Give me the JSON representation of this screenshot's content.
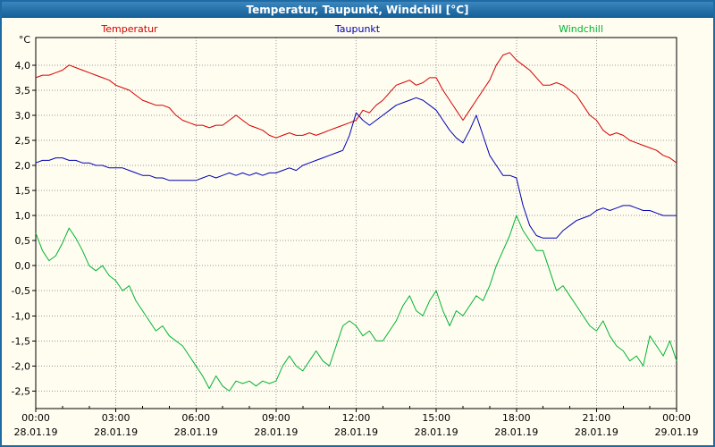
{
  "window": {
    "title": "Temperatur, Taupunkt, Windchill [°C]"
  },
  "legend": [
    {
      "label": "Temperatur",
      "color": "#d40000"
    },
    {
      "label": "Taupunkt",
      "color": "#0000b4"
    },
    {
      "label": "Windchill",
      "color": "#00b432"
    }
  ],
  "chart_data": {
    "type": "line",
    "title": "Temperatur, Taupunkt, Windchill [°C]",
    "ylabel": "°C",
    "grid": true,
    "legend_position": "top",
    "xlim": [
      0,
      24
    ],
    "ylim": [
      -2.85,
      4.55
    ],
    "x_start": 0,
    "x_step": 0.25,
    "y_ticks": [
      {
        "value": 4.0,
        "label": "4,0"
      },
      {
        "value": 3.5,
        "label": "3,5"
      },
      {
        "value": 3.0,
        "label": "3,0"
      },
      {
        "value": 2.5,
        "label": "2,5"
      },
      {
        "value": 2.0,
        "label": "2,0"
      },
      {
        "value": 1.5,
        "label": "1,5"
      },
      {
        "value": 1.0,
        "label": "1,0"
      },
      {
        "value": 0.5,
        "label": "0,5"
      },
      {
        "value": 0.0,
        "label": "0,0"
      },
      {
        "value": -0.5,
        "label": "-0,5"
      },
      {
        "value": -1.0,
        "label": "-1,0"
      },
      {
        "value": -1.5,
        "label": "-1,5"
      },
      {
        "value": -2.0,
        "label": "-2,0"
      },
      {
        "value": -2.5,
        "label": "-2,5"
      }
    ],
    "x_ticks": [
      {
        "hour": 0,
        "time": "00:00",
        "date": "28.01.19"
      },
      {
        "hour": 3,
        "time": "03:00",
        "date": "28.01.19"
      },
      {
        "hour": 6,
        "time": "06:00",
        "date": "28.01.19"
      },
      {
        "hour": 9,
        "time": "09:00",
        "date": "28.01.19"
      },
      {
        "hour": 12,
        "time": "12:00",
        "date": "28.01.19"
      },
      {
        "hour": 15,
        "time": "15:00",
        "date": "28.01.19"
      },
      {
        "hour": 18,
        "time": "18:00",
        "date": "28.01.19"
      },
      {
        "hour": 21,
        "time": "21:00",
        "date": "28.01.19"
      },
      {
        "hour": 24,
        "time": "00:00",
        "date": "29.01.19"
      }
    ],
    "series": [
      {
        "name": "Temperatur",
        "color": "#d40000",
        "values": [
          3.75,
          3.8,
          3.8,
          3.85,
          3.9,
          4.0,
          3.95,
          3.9,
          3.85,
          3.8,
          3.75,
          3.7,
          3.6,
          3.55,
          3.5,
          3.4,
          3.3,
          3.25,
          3.2,
          3.2,
          3.15,
          3.0,
          2.9,
          2.85,
          2.8,
          2.8,
          2.75,
          2.8,
          2.8,
          2.9,
          3.0,
          2.9,
          2.8,
          2.75,
          2.7,
          2.6,
          2.55,
          2.6,
          2.65,
          2.6,
          2.6,
          2.65,
          2.6,
          2.65,
          2.7,
          2.75,
          2.8,
          2.85,
          2.9,
          3.1,
          3.05,
          3.2,
          3.3,
          3.45,
          3.6,
          3.65,
          3.7,
          3.6,
          3.65,
          3.75,
          3.75,
          3.5,
          3.3,
          3.1,
          2.9,
          3.1,
          3.3,
          3.5,
          3.7,
          4.0,
          4.2,
          4.25,
          4.1,
          4.0,
          3.9,
          3.75,
          3.6,
          3.6,
          3.65,
          3.6,
          3.5,
          3.4,
          3.2,
          3.0,
          2.9,
          2.7,
          2.6,
          2.65,
          2.6,
          2.5,
          2.45,
          2.4,
          2.35,
          2.3,
          2.2,
          2.15,
          2.05
        ]
      },
      {
        "name": "Taupunkt",
        "color": "#0000b4",
        "values": [
          2.05,
          2.1,
          2.1,
          2.15,
          2.15,
          2.1,
          2.1,
          2.05,
          2.05,
          2.0,
          2.0,
          1.95,
          1.95,
          1.95,
          1.9,
          1.85,
          1.8,
          1.8,
          1.75,
          1.75,
          1.7,
          1.7,
          1.7,
          1.7,
          1.7,
          1.75,
          1.8,
          1.75,
          1.8,
          1.85,
          1.8,
          1.85,
          1.8,
          1.85,
          1.8,
          1.85,
          1.85,
          1.9,
          1.95,
          1.9,
          2.0,
          2.05,
          2.1,
          2.15,
          2.2,
          2.25,
          2.3,
          2.6,
          3.05,
          2.9,
          2.8,
          2.9,
          3.0,
          3.1,
          3.2,
          3.25,
          3.3,
          3.35,
          3.3,
          3.2,
          3.1,
          2.9,
          2.7,
          2.55,
          2.45,
          2.7,
          3.0,
          2.6,
          2.2,
          2.0,
          1.8,
          1.8,
          1.75,
          1.2,
          0.8,
          0.6,
          0.55,
          0.55,
          0.55,
          0.7,
          0.8,
          0.9,
          0.95,
          1.0,
          1.1,
          1.15,
          1.1,
          1.15,
          1.2,
          1.2,
          1.15,
          1.1,
          1.1,
          1.05,
          1.0,
          1.0,
          1.0
        ]
      },
      {
        "name": "Windchill",
        "color": "#00b432",
        "values": [
          0.65,
          0.3,
          0.1,
          0.2,
          0.45,
          0.75,
          0.55,
          0.3,
          0.0,
          -0.1,
          0.0,
          -0.2,
          -0.3,
          -0.5,
          -0.4,
          -0.7,
          -0.9,
          -1.1,
          -1.3,
          -1.2,
          -1.4,
          -1.5,
          -1.6,
          -1.8,
          -2.0,
          -2.2,
          -2.45,
          -2.2,
          -2.4,
          -2.5,
          -2.3,
          -2.35,
          -2.3,
          -2.4,
          -2.3,
          -2.35,
          -2.3,
          -2.0,
          -1.8,
          -2.0,
          -2.1,
          -1.9,
          -1.7,
          -1.9,
          -2.0,
          -1.6,
          -1.2,
          -1.1,
          -1.2,
          -1.4,
          -1.3,
          -1.5,
          -1.5,
          -1.3,
          -1.1,
          -0.8,
          -0.6,
          -0.9,
          -1.0,
          -0.7,
          -0.5,
          -0.9,
          -1.2,
          -0.9,
          -1.0,
          -0.8,
          -0.6,
          -0.7,
          -0.4,
          0.0,
          0.3,
          0.6,
          1.0,
          0.7,
          0.5,
          0.3,
          0.3,
          -0.1,
          -0.5,
          -0.4,
          -0.6,
          -0.8,
          -1.0,
          -1.2,
          -1.3,
          -1.1,
          -1.4,
          -1.6,
          -1.7,
          -1.9,
          -1.8,
          -2.0,
          -1.4,
          -1.6,
          -1.8,
          -1.5,
          -1.9
        ]
      }
    ]
  }
}
